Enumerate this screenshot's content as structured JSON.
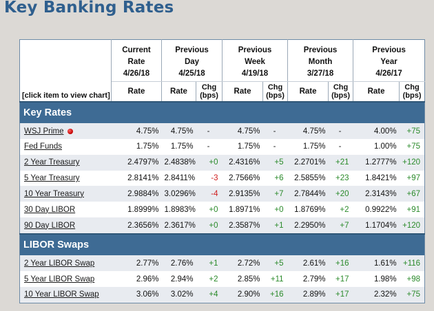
{
  "page_title": "Key Banking Rates",
  "header": {
    "click_hint": "[click item to view chart]",
    "current": "Current Rate 4/26/18",
    "prev_day": "Previous Day 4/25/18",
    "prev_week": "Previous Week 4/19/18",
    "prev_month": "Previous Month 3/27/18",
    "prev_year": "Previous Year 4/26/17",
    "rate_label": "Rate",
    "chg_label": "Chg (bps)"
  },
  "sections": [
    {
      "title": "Key Rates",
      "rows": [
        {
          "name": "WSJ Prime",
          "cur": "4.75%",
          "d_rate": "4.75%",
          "d_chg": "-",
          "w_rate": "4.75%",
          "w_chg": "-",
          "m_rate": "4.75%",
          "m_chg": "-",
          "y_rate": "4.00%",
          "y_chg": "+75"
        },
        {
          "name": "Fed Funds",
          "cur": "1.75%",
          "d_rate": "1.75%",
          "d_chg": "-",
          "w_rate": "1.75%",
          "w_chg": "-",
          "m_rate": "1.75%",
          "m_chg": "-",
          "y_rate": "1.00%",
          "y_chg": "+75"
        },
        {
          "name": "2 Year Treasury",
          "cur": "2.4797%",
          "d_rate": "2.4838%",
          "d_chg": "+0",
          "w_rate": "2.4316%",
          "w_chg": "+5",
          "m_rate": "2.2701%",
          "m_chg": "+21",
          "y_rate": "1.2777%",
          "y_chg": "+120"
        },
        {
          "name": "5 Year Treasury",
          "cur": "2.8141%",
          "d_rate": "2.8411%",
          "d_chg": "-3",
          "w_rate": "2.7566%",
          "w_chg": "+6",
          "m_rate": "2.5855%",
          "m_chg": "+23",
          "y_rate": "1.8421%",
          "y_chg": "+97"
        },
        {
          "name": "10 Year Treasury",
          "cur": "2.9884%",
          "d_rate": "3.0296%",
          "d_chg": "-4",
          "w_rate": "2.9135%",
          "w_chg": "+7",
          "m_rate": "2.7844%",
          "m_chg": "+20",
          "y_rate": "2.3143%",
          "y_chg": "+67"
        },
        {
          "name": "30 Day LIBOR",
          "cur": "1.8999%",
          "d_rate": "1.8983%",
          "d_chg": "+0",
          "w_rate": "1.8971%",
          "w_chg": "+0",
          "m_rate": "1.8769%",
          "m_chg": "+2",
          "y_rate": "0.9922%",
          "y_chg": "+91"
        },
        {
          "name": "90 Day LIBOR",
          "cur": "2.3656%",
          "d_rate": "2.3617%",
          "d_chg": "+0",
          "w_rate": "2.3587%",
          "w_chg": "+1",
          "m_rate": "2.2950%",
          "m_chg": "+7",
          "y_rate": "1.1704%",
          "y_chg": "+120"
        }
      ]
    },
    {
      "title": "LIBOR Swaps",
      "rows": [
        {
          "name": "2 Year LIBOR Swap",
          "cur": "2.77%",
          "d_rate": "2.76%",
          "d_chg": "+1",
          "w_rate": "2.72%",
          "w_chg": "+5",
          "m_rate": "2.61%",
          "m_chg": "+16",
          "y_rate": "1.61%",
          "y_chg": "+116"
        },
        {
          "name": "5 Year LIBOR Swap",
          "cur": "2.96%",
          "d_rate": "2.94%",
          "d_chg": "+2",
          "w_rate": "2.85%",
          "w_chg": "+11",
          "m_rate": "2.79%",
          "m_chg": "+17",
          "y_rate": "1.98%",
          "y_chg": "+98"
        },
        {
          "name": "10 Year LIBOR Swap",
          "cur": "3.06%",
          "d_rate": "3.02%",
          "d_chg": "+4",
          "w_rate": "2.90%",
          "w_chg": "+16",
          "m_rate": "2.89%",
          "m_chg": "+17",
          "y_rate": "2.32%",
          "y_chg": "+75"
        }
      ]
    }
  ],
  "colors": {
    "title": "#2f5f8e",
    "section_bar": "#3e6b94",
    "positive": "#2a8a2a",
    "negative": "#d02020",
    "alt_row": "#e8ebf0"
  },
  "icons": {
    "prime_indicator": "red-dot-icon"
  }
}
